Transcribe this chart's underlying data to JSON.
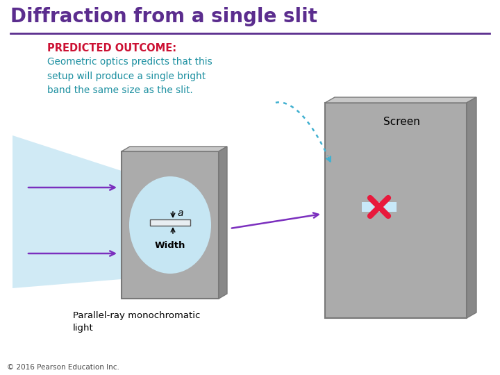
{
  "title": "Diffraction from a single slit",
  "title_color": "#5B2D8E",
  "title_fontsize": 20,
  "bg_color": "#FFFFFF",
  "predicted_label": "PREDICTED OUTCOME:",
  "predicted_color": "#CC1133",
  "body_text": "Geometric optics predicts that this\nsetup will produce a single bright\nband the same size as the slit.",
  "body_text_color": "#1B8FA0",
  "screen_label": "Screen",
  "width_label": "Width",
  "a_label": "a",
  "parallel_label": "Parallel-ray monochromatic\nlight",
  "copyright": "© 2016 Pearson Education Inc.",
  "slit_plate_color": "#ABABAB",
  "slit_plate_edge_color": "#787878",
  "slit_plate_dark_color": "#888888",
  "screen_plate_color": "#ABABAB",
  "screen_plate_dark_color": "#888888",
  "light_beam_color": "#B8DFF0",
  "circle_color": "#C8EAF8",
  "arrow_color": "#7B2FBE",
  "dotted_arrow_color": "#40B0D0",
  "x_color": "#E8193C",
  "band_color": "#C8E8F8",
  "title_rule_color": "#5B2D8E"
}
